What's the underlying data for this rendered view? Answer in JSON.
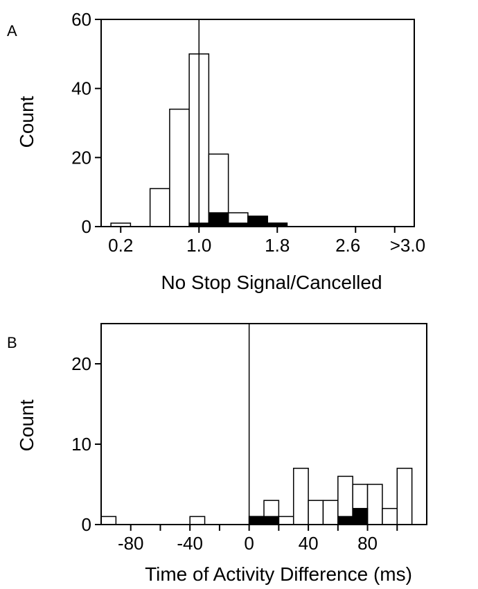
{
  "chart_data": [
    {
      "panel_label": "A",
      "type": "bar",
      "xlabel": "No Stop Signal/Cancelled",
      "ylabel": "Count",
      "ylim": [
        0,
        60
      ],
      "yticks": [
        0,
        20,
        40,
        60
      ],
      "xlim": [
        0,
        3.2
      ],
      "xticks": [
        {
          "value": 0.2,
          "label": "0.2"
        },
        {
          "value": 1.0,
          "label": "1.0"
        },
        {
          "value": 1.8,
          "label": "1.8"
        },
        {
          "value": 2.6,
          "label": "2.6"
        },
        {
          "value": 3.0,
          "label": ">3.0"
        }
      ],
      "reference_line": 1.0,
      "bin_width": 0.2,
      "bin_starts": [
        0.1,
        0.3,
        0.5,
        0.7,
        0.9,
        1.1,
        1.3,
        1.5,
        1.7,
        1.9,
        2.1,
        2.3,
        2.5,
        2.7,
        2.9
      ],
      "series": [
        {
          "values": [
            1,
            0,
            11,
            34,
            50,
            21,
            4,
            3,
            1,
            0,
            0,
            0,
            0,
            0,
            0
          ],
          "fill": "#ffffff"
        },
        {
          "values": [
            0,
            0,
            0,
            0,
            1,
            4,
            1,
            3,
            1,
            0,
            0,
            0,
            0,
            0,
            0
          ],
          "fill": "#000000"
        }
      ],
      "grid": false
    },
    {
      "panel_label": "B",
      "type": "bar",
      "xlabel": "Time of Activity Difference (ms)",
      "ylabel": "Count",
      "ylim": [
        0,
        25
      ],
      "yticks": [
        0,
        10,
        20
      ],
      "xlim": [
        -100,
        120
      ],
      "xticks": [
        {
          "value": -80,
          "label": "-80"
        },
        {
          "value": -40,
          "label": "-40"
        },
        {
          "value": 0,
          "label": "0"
        },
        {
          "value": 40,
          "label": "40"
        },
        {
          "value": 80,
          "label": "80"
        }
      ],
      "minor_xticks": [
        -60,
        -20,
        20,
        60,
        100
      ],
      "reference_line": 0,
      "bin_width": 10,
      "bin_starts": [
        -100,
        -90,
        -80,
        -70,
        -60,
        -50,
        -40,
        -30,
        -20,
        -10,
        0,
        10,
        20,
        30,
        40,
        50,
        60,
        70,
        80,
        90,
        100
      ],
      "series": [
        {
          "values": [
            1,
            0,
            0,
            0,
            0,
            0,
            1,
            0,
            0,
            0,
            1,
            3,
            1,
            7,
            3,
            3,
            6,
            5,
            5,
            2,
            7
          ],
          "fill": "#ffffff"
        },
        {
          "values": [
            0,
            0,
            0,
            0,
            0,
            0,
            0,
            0,
            0,
            0,
            1,
            1,
            0,
            0,
            0,
            0,
            1,
            2,
            0,
            0,
            0
          ],
          "fill": "#000000"
        }
      ],
      "grid": false
    }
  ]
}
